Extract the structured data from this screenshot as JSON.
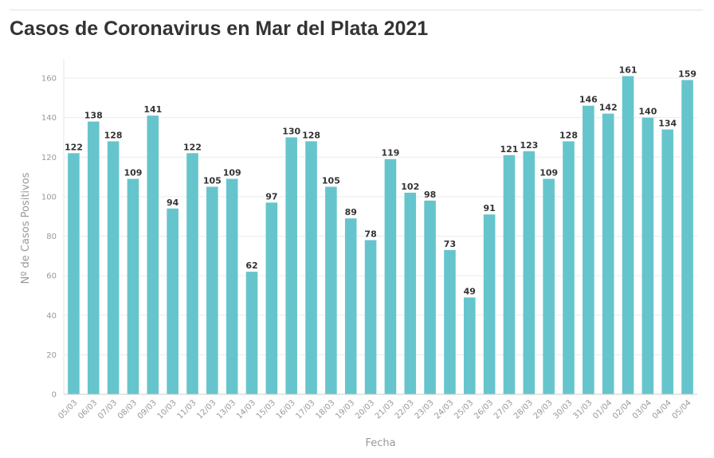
{
  "title": "Casos de Coronavirus en Mar del Plata 2021",
  "chart_data": {
    "type": "bar",
    "title": "Casos de Coronavirus en Mar del Plata 2021",
    "xlabel": "Fecha",
    "ylabel": "Nº de Casos Positivos",
    "ylim": [
      0,
      170
    ],
    "yticks": [
      0,
      20,
      40,
      60,
      80,
      100,
      120,
      140,
      160
    ],
    "grid": true,
    "bar_color": "#66c5cc",
    "categories": [
      "05/03",
      "06/03",
      "07/03",
      "08/03",
      "09/03",
      "10/03",
      "11/03",
      "12/03",
      "13/03",
      "14/03",
      "15/03",
      "16/03",
      "17/03",
      "18/03",
      "19/03",
      "20/03",
      "21/03",
      "22/03",
      "23/03",
      "24/03",
      "25/03",
      "26/03",
      "27/03",
      "28/03",
      "29/03",
      "30/03",
      "31/03",
      "01/04",
      "02/04",
      "03/04",
      "04/04",
      "05/04"
    ],
    "values": [
      122,
      138,
      128,
      109,
      141,
      94,
      122,
      105,
      109,
      62,
      97,
      130,
      128,
      105,
      89,
      78,
      119,
      102,
      98,
      73,
      49,
      91,
      121,
      123,
      109,
      128,
      146,
      142,
      161,
      140,
      134,
      159
    ]
  }
}
